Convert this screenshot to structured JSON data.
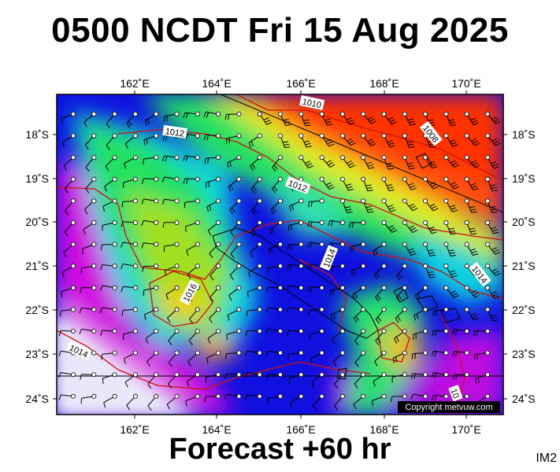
{
  "header": {
    "title": "0500 NCDT Fri 15 Aug 2025"
  },
  "footer": {
    "forecast": "Forecast +60 hr",
    "code": "IM2"
  },
  "map": {
    "copyright": "Copyright metvuw.com",
    "lon_labels": [
      "162˚E",
      "164˚E",
      "166˚E",
      "168˚E",
      "170˚E"
    ],
    "lat_labels": [
      "18˚S",
      "19˚S",
      "20˚S",
      "21˚S",
      "22˚S",
      "23˚S",
      "24˚S"
    ],
    "isobar_labels": [
      "1010",
      "1008",
      "1012",
      "1012",
      "1014",
      "1014",
      "1016",
      "1014",
      "10"
    ],
    "colors": {
      "frame": "#000000",
      "isobar": "#d01010",
      "coast": "#000000",
      "ocean_low": "#e6e6f6",
      "calm": "#e020e0",
      "strong": "#ff4400"
    }
  }
}
